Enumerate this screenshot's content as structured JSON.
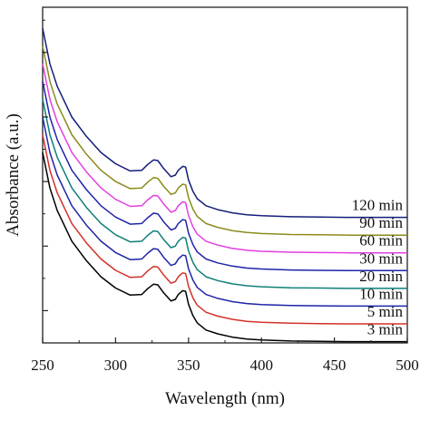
{
  "chart_data": {
    "type": "line",
    "title": "",
    "xlabel": "Wavelength (nm)",
    "ylabel": "Absorbance (a.u.)",
    "xlim": [
      250,
      500
    ],
    "xticks": [
      250,
      300,
      350,
      400,
      450,
      500
    ],
    "grid": false,
    "legend": "none",
    "y_tick_labels_shown": false,
    "series": [
      {
        "name": "3 min",
        "color": "#000000",
        "offset": 0.0
      },
      {
        "name": "5 min",
        "color": "#d3312a",
        "offset": 0.55
      },
      {
        "name": "10 min",
        "color": "#1f24a8",
        "offset": 1.1
      },
      {
        "name": "20 min",
        "color": "#0e7f78",
        "offset": 1.65
      },
      {
        "name": "30 min",
        "color": "#1f24a8",
        "offset": 2.2
      },
      {
        "name": "60 min",
        "color": "#e33fe0",
        "offset": 2.75
      },
      {
        "name": "90 min",
        "color": "#8c8a1c",
        "offset": 3.3
      },
      {
        "name": "120 min",
        "color": "#141e7a",
        "offset": 3.85
      }
    ],
    "series_colors_note_removed": "",
    "spectrum_shape": {
      "x": [
        250,
        255,
        260,
        270,
        280,
        290,
        300,
        310,
        318,
        322,
        326,
        329,
        333,
        338,
        341,
        343,
        346,
        348,
        350,
        353,
        356,
        362,
        370,
        380,
        390,
        400,
        420,
        440,
        460,
        480,
        500
      ],
      "y": [
        5.9,
        4.8,
        4.1,
        3.15,
        2.55,
        2.05,
        1.7,
        1.48,
        1.5,
        1.68,
        1.82,
        1.8,
        1.55,
        1.3,
        1.35,
        1.5,
        1.62,
        1.6,
        1.2,
        0.85,
        0.62,
        0.4,
        0.28,
        0.18,
        0.12,
        0.09,
        0.06,
        0.05,
        0.04,
        0.04,
        0.04
      ]
    }
  }
}
